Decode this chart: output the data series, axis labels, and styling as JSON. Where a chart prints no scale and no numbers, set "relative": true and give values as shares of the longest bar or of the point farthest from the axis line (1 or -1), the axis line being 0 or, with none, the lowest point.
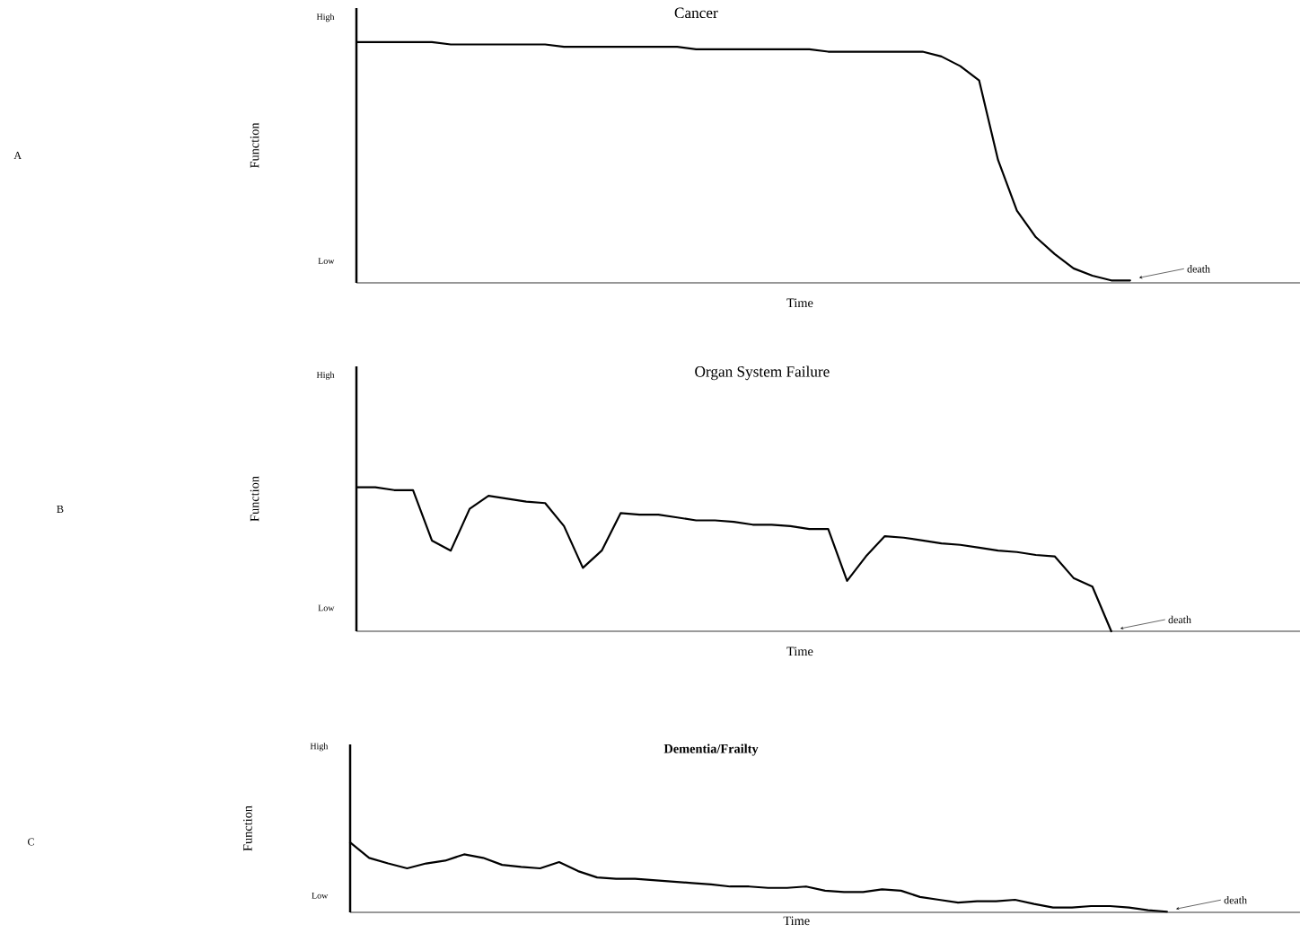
{
  "chart_data": [
    {
      "type": "line",
      "relative": true,
      "title": "Cancer",
      "xlabel": "Time",
      "ylabel": "Function",
      "annotations": [
        "A",
        "death",
        "High",
        "Low"
      ],
      "categories": [
        null,
        null,
        null,
        null,
        null,
        null,
        null,
        null,
        null,
        null,
        null,
        null,
        null,
        null,
        null,
        null,
        null,
        null,
        null,
        null,
        null,
        null,
        null,
        null,
        null,
        null,
        null,
        null,
        null,
        null,
        null,
        null,
        null,
        null,
        null,
        null,
        null,
        null,
        null,
        null,
        null,
        null,
        null,
        null,
        null,
        null,
        null,
        null,
        null,
        null,
        null
      ],
      "series": [
        {
          "color": "#000000",
          "values": [
            1.0,
            1.0,
            1.0,
            1.0,
            1.0,
            0.99,
            0.99,
            0.99,
            0.99,
            0.99,
            0.99,
            0.98,
            0.98,
            0.98,
            0.98,
            0.98,
            0.98,
            0.98,
            0.97,
            0.97,
            0.97,
            0.97,
            0.97,
            0.97,
            0.97,
            0.96,
            0.96,
            0.96,
            0.96,
            0.96,
            0.96,
            0.94,
            0.9,
            0.84,
            0.51,
            0.3,
            0.19,
            0.12,
            0.06,
            0.03,
            0.01,
            0.01,
            null,
            null,
            null,
            null,
            null,
            null,
            null,
            null,
            null
          ]
        }
      ]
    },
    {
      "type": "line",
      "relative": true,
      "title": "Organ System Failure",
      "xlabel": "Time",
      "ylabel": "Function",
      "annotations": [
        "B",
        "death",
        "High",
        "Low"
      ],
      "categories": [
        null,
        null,
        null,
        null,
        null,
        null,
        null,
        null,
        null,
        null,
        null,
        null,
        null,
        null,
        null,
        null,
        null,
        null,
        null,
        null,
        null,
        null,
        null,
        null,
        null,
        null,
        null,
        null,
        null,
        null,
        null,
        null,
        null,
        null,
        null,
        null,
        null,
        null,
        null,
        null,
        null,
        null,
        null,
        null,
        null,
        null,
        null,
        null,
        null,
        null,
        null
      ],
      "series": [
        {
          "color": "#000000",
          "values": [
            1.0,
            1.0,
            0.98,
            0.98,
            0.63,
            0.56,
            0.85,
            0.94,
            0.92,
            0.9,
            0.89,
            0.73,
            0.44,
            0.56,
            0.82,
            0.81,
            0.81,
            0.79,
            0.77,
            0.77,
            0.76,
            0.74,
            0.74,
            0.73,
            0.71,
            0.71,
            0.35,
            0.52,
            0.66,
            0.65,
            0.63,
            0.61,
            0.6,
            0.58,
            0.56,
            0.55,
            0.53,
            0.52,
            0.37,
            0.31,
            0,
            null,
            null,
            null,
            null,
            null,
            null,
            null,
            null,
            null,
            null
          ]
        }
      ]
    },
    {
      "type": "line",
      "relative": true,
      "title": "Dementia/Frailty",
      "xlabel": "Time",
      "ylabel": "Function",
      "annotations": [
        "C",
        "death",
        "High",
        "Low"
      ],
      "categories": [
        null,
        null,
        null,
        null,
        null,
        null,
        null,
        null,
        null,
        null,
        null,
        null,
        null,
        null,
        null,
        null,
        null,
        null,
        null,
        null,
        null,
        null,
        null,
        null,
        null,
        null,
        null,
        null,
        null,
        null,
        null,
        null,
        null,
        null,
        null,
        null,
        null,
        null,
        null,
        null,
        null,
        null,
        null,
        null,
        null,
        null,
        null,
        null,
        null,
        null,
        null
      ],
      "series": [
        {
          "color": "#000000",
          "values": [
            1.0,
            0.78,
            0.7,
            0.63,
            0.7,
            0.74,
            0.83,
            0.78,
            0.68,
            0.65,
            0.63,
            0.72,
            0.59,
            0.5,
            0.48,
            0.48,
            0.46,
            0.44,
            0.42,
            0.4,
            0.37,
            0.37,
            0.35,
            0.35,
            0.37,
            0.31,
            0.29,
            0.29,
            0.33,
            0.31,
            0.22,
            0.18,
            0.14,
            0.16,
            0.16,
            0.18,
            0.12,
            0.07,
            0.07,
            0.09,
            0.09,
            0.07,
            0.03,
            0.01,
            null,
            null,
            null,
            null,
            null,
            null,
            null
          ]
        }
      ]
    }
  ]
}
